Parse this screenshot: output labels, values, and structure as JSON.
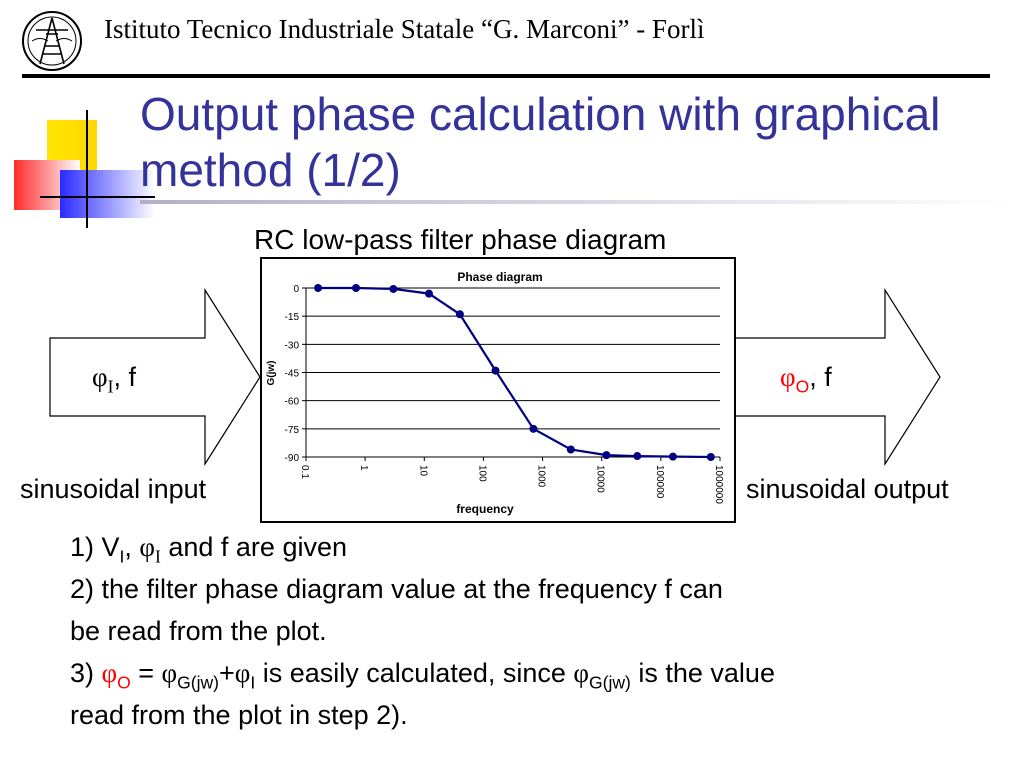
{
  "header": {
    "institute": "Istituto Tecnico Industriale Statale “G. Marconi” -  Forlì"
  },
  "slide": {
    "title": "Output phase calculation with graphical method (1/2)",
    "chart_caption": "RC low-pass filter phase diagram"
  },
  "flow": {
    "input": {
      "phi": "φ",
      "sub": "I",
      "sep": ", ",
      "f": "f",
      "label": "sinusoidal input"
    },
    "output": {
      "phi": "φ",
      "sub": "O",
      "sep": ", ",
      "f": "f",
      "label": "sinusoidal output"
    }
  },
  "steps": {
    "step1": {
      "num": "1) V",
      "sub1": "I",
      "comma": ", ",
      "phi": "φ",
      "sub2": "I",
      "rest": " and f are given"
    },
    "step2_line1": "2) the filter phase diagram value at the frequency f can",
    "step2_line2": "be read from the plot.",
    "step3": {
      "num": "3) ",
      "phi_o": "φ",
      "sub_o": "O",
      "eq": " = ",
      "phi_g": "φ",
      "sub_g": "G(jw)",
      "plus": "+",
      "phi_i": "φ",
      "sub_i": "I",
      "mid": " is easily calculated, since ",
      "phi_g2": "φ",
      "sub_g2": "G(jw)",
      "end": " is the value",
      "line2": "read from the plot in step 2)."
    }
  },
  "colors": {
    "title": "#333399",
    "series": "#000080",
    "highlight": "#ff0000"
  },
  "chart_data": {
    "type": "line",
    "title": "Phase diagram",
    "xlabel": "frequency",
    "ylabel": "G(jw)",
    "x_scale": "log",
    "x_tick_labels": [
      "0.1",
      "1",
      "10",
      "100",
      "1000",
      "10000",
      "100000",
      "1000000"
    ],
    "x_tick_values": [
      0.1,
      1,
      10,
      100,
      1000,
      10000,
      100000,
      1000000
    ],
    "y_tick_labels": [
      "0",
      "-15",
      "-30",
      "-45",
      "-60",
      "-75",
      "-90"
    ],
    "y_tick_values": [
      0,
      -15,
      -30,
      -45,
      -60,
      -75,
      -90
    ],
    "ylim": [
      -90,
      0
    ],
    "xlim": [
      0.1,
      1000000
    ],
    "grid": "horizontal",
    "legend": "none",
    "series": [
      {
        "x": [
          0.16,
          0.7,
          3,
          12,
          40,
          160,
          700,
          3000,
          12000,
          40000,
          160000,
          700000
        ],
        "y": [
          0,
          0,
          -0.5,
          -3,
          -14,
          -44,
          -75,
          -86,
          -89,
          -89.5,
          -89.8,
          -90
        ]
      }
    ]
  }
}
